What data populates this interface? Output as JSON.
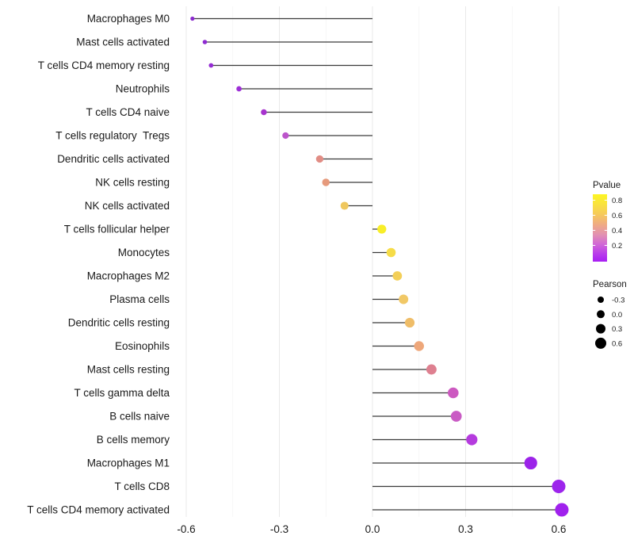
{
  "chart_data": {
    "type": "lollipop",
    "orientation": "horizontal",
    "title": "",
    "xlabel": "",
    "ylabel": "",
    "xlim": [
      -0.63,
      0.69
    ],
    "x_ticks": [
      "-0.6",
      "-0.3",
      "0.0",
      "0.3",
      "0.6"
    ],
    "x_tick_values": [
      -0.6,
      -0.3,
      0.0,
      0.3,
      0.6
    ],
    "x_minor_gridlines": [
      -0.45,
      -0.15,
      0.15,
      0.45
    ],
    "grid": "vertical major and minor, light gray, no horizontal grid",
    "stem_origin": 0.0,
    "points": [
      {
        "label": "Macrophages M0",
        "pearson": -0.58,
        "pvalue_est": 0.03,
        "color": "#8B2BCE"
      },
      {
        "label": "Mast cells activated",
        "pearson": -0.54,
        "pvalue_est": 0.04,
        "color": "#8E2BD1"
      },
      {
        "label": "T cells CD4 memory resting",
        "pearson": -0.52,
        "pvalue_est": 0.05,
        "color": "#952CD3"
      },
      {
        "label": "Neutrophils",
        "pearson": -0.43,
        "pvalue_est": 0.07,
        "color": "#9D2FD6"
      },
      {
        "label": "T cells CD4 naive",
        "pearson": -0.35,
        "pvalue_est": 0.1,
        "color": "#A733CE"
      },
      {
        "label": "T cells regulatory  Tregs",
        "pearson": -0.28,
        "pvalue_est": 0.17,
        "color": "#BC55CB"
      },
      {
        "label": "Dendritic cells activated",
        "pearson": -0.17,
        "pvalue_est": 0.44,
        "color": "#E18D85"
      },
      {
        "label": "NK cells resting",
        "pearson": -0.15,
        "pvalue_est": 0.48,
        "color": "#E69A7C"
      },
      {
        "label": "NK cells activated",
        "pearson": -0.09,
        "pvalue_est": 0.62,
        "color": "#EFC75E"
      },
      {
        "label": "T cells follicular helper",
        "pearson": 0.03,
        "pvalue_est": 0.85,
        "color": "#F8EE29"
      },
      {
        "label": "Monocytes",
        "pearson": 0.06,
        "pvalue_est": 0.76,
        "color": "#F6DC48"
      },
      {
        "label": "Macrophages M2",
        "pearson": 0.08,
        "pvalue_est": 0.7,
        "color": "#F3CF58"
      },
      {
        "label": "Plasma cells",
        "pearson": 0.1,
        "pvalue_est": 0.66,
        "color": "#F1C866"
      },
      {
        "label": "Dendritic cells resting",
        "pearson": 0.12,
        "pvalue_est": 0.62,
        "color": "#EFBD68"
      },
      {
        "label": "Eosinophils",
        "pearson": 0.15,
        "pvalue_est": 0.52,
        "color": "#EEA77A"
      },
      {
        "label": "Mast cells resting",
        "pearson": 0.19,
        "pvalue_est": 0.38,
        "color": "#DE8090"
      },
      {
        "label": "T cells gamma delta",
        "pearson": 0.26,
        "pvalue_est": 0.2,
        "color": "#CC59C0"
      },
      {
        "label": "B cells naive",
        "pearson": 0.27,
        "pvalue_est": 0.2,
        "color": "#C95BC4"
      },
      {
        "label": "B cells memory",
        "pearson": 0.32,
        "pvalue_est": 0.12,
        "color": "#B53BDE"
      },
      {
        "label": "Macrophages M1",
        "pearson": 0.51,
        "pvalue_est": 0.04,
        "color": "#9C23E9"
      },
      {
        "label": "T cells CD8",
        "pearson": 0.6,
        "pvalue_est": 0.04,
        "color": "#9D25EC"
      },
      {
        "label": "T cells CD4 memory activated",
        "pearson": 0.61,
        "pvalue_est": 0.03,
        "color": "#A021ED"
      }
    ],
    "legends": {
      "pvalue": {
        "title": "Pvalue",
        "tick_labels": [
          "0.8",
          "0.6",
          "0.4",
          "0.2"
        ],
        "gradient_top_to_bottom": [
          {
            "offset": 0.0,
            "color": "#FCF523"
          },
          {
            "offset": 0.15,
            "color": "#F9E23F"
          },
          {
            "offset": 0.3,
            "color": "#F6C95B"
          },
          {
            "offset": 0.45,
            "color": "#EFAB84"
          },
          {
            "offset": 0.6,
            "color": "#E291B2"
          },
          {
            "offset": 0.75,
            "color": "#D065D8"
          },
          {
            "offset": 0.9,
            "color": "#B637EC"
          },
          {
            "offset": 1.0,
            "color": "#A81EF3"
          }
        ]
      },
      "pearson": {
        "title": "Pearson",
        "items": [
          {
            "label": "-0.3",
            "diameter": 8
          },
          {
            "label": "0.0",
            "diameter": 10
          },
          {
            "label": "0.3",
            "diameter": 12
          },
          {
            "label": "0.6",
            "diameter": 14
          }
        ],
        "dot_color": "#000000"
      }
    },
    "style": {
      "background": "#FFFFFF",
      "stem_color": "#3A3A3A",
      "major_grid_color": "#E9E9E9",
      "minor_grid_color": "#F4F4F4",
      "axis_text_color": "#1A1A1A"
    }
  }
}
